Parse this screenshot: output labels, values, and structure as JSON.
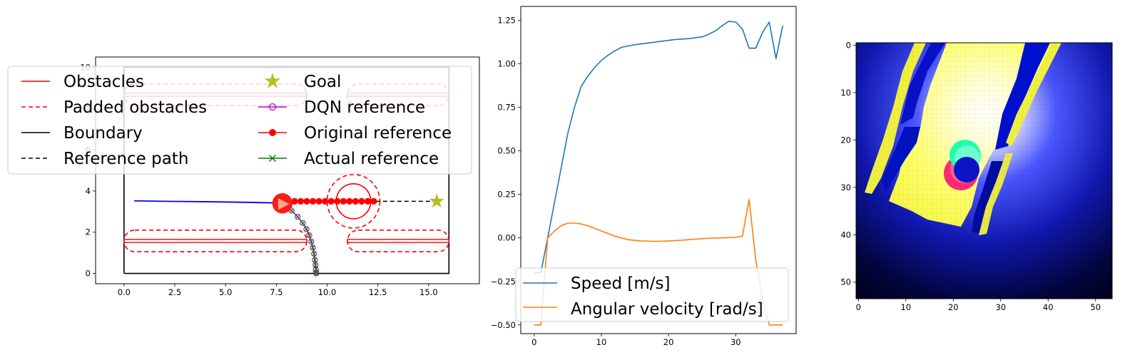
{
  "colors": {
    "obstacle": "#ff0000",
    "boundary": "#000000",
    "reference_path": "#000000",
    "goal": "#bcbd22",
    "dqn": "#bf00bf",
    "original": "#ff0000",
    "actual": "#008000",
    "trajectory": "#0000ff",
    "speed": "#1f77b4",
    "angular": "#ff7f0e"
  },
  "chart_data": [
    {
      "type": "line",
      "xlim": [
        -1.4,
        17.5
      ],
      "ylim": [
        -0.5,
        10.5
      ],
      "xticks": [
        "0.0",
        "2.5",
        "5.0",
        "7.5",
        "10.0",
        "12.5",
        "15.0"
      ],
      "xtick_values": [
        0,
        2.5,
        5,
        7.5,
        10,
        12.5,
        15
      ],
      "yticks": [
        "0",
        "2",
        "4",
        "6",
        "8",
        "10"
      ],
      "ytick_values": [
        0,
        2,
        4,
        6,
        8,
        10
      ],
      "legend": {
        "placement": "upper-left",
        "entries": [
          "Obstacles",
          "Padded obstacles",
          "Boundary",
          "Reference path",
          "Goal",
          "DQN reference",
          "Original reference",
          "Actual reference"
        ]
      },
      "boundary": [
        [
          0,
          0
        ],
        [
          16,
          0
        ],
        [
          16,
          10
        ],
        [
          0,
          10
        ],
        [
          0,
          0
        ]
      ],
      "obstacles": [
        {
          "x": [
            0,
            9
          ],
          "y": [
            1.5,
            1.65
          ]
        },
        {
          "x": [
            11,
            16
          ],
          "y": [
            1.5,
            1.65
          ]
        },
        {
          "x": [
            0,
            9
          ],
          "y": [
            8.6,
            8.75
          ]
        },
        {
          "x": [
            11,
            16
          ],
          "y": [
            8.6,
            8.75
          ]
        }
      ],
      "padded_obstacles": [
        {
          "x": [
            0,
            9
          ],
          "y": [
            1.05,
            2.1
          ]
        },
        {
          "x": [
            11,
            16
          ],
          "y": [
            1.05,
            2.1
          ]
        },
        {
          "x": [
            0,
            9
          ],
          "y": [
            8.15,
            9.2
          ]
        },
        {
          "x": [
            11,
            16
          ],
          "y": [
            8.15,
            9.2
          ]
        }
      ],
      "dynamic_obstacle": {
        "center": [
          11.3,
          3.5
        ],
        "radius": 0.85,
        "padded_radius": 1.3
      },
      "robot": {
        "center": [
          7.8,
          3.4
        ],
        "radius": 0.5
      },
      "goal": [
        15.4,
        3.5
      ],
      "reference_path": {
        "x": [
          12.4,
          15.4
        ],
        "y": [
          3.5,
          3.5
        ]
      },
      "trajectory": {
        "x": [
          0.5,
          2,
          4,
          6,
          7.5,
          7.8
        ],
        "y": [
          3.52,
          3.5,
          3.48,
          3.45,
          3.42,
          3.4
        ]
      },
      "original_reference": {
        "x": [
          7.8,
          8.1,
          8.4,
          8.7,
          9.0,
          9.3,
          9.6,
          9.9,
          10.2,
          10.5,
          10.8,
          11.1,
          11.4,
          11.7,
          12.0,
          12.3
        ],
        "y": [
          3.5,
          3.5,
          3.5,
          3.5,
          3.5,
          3.5,
          3.5,
          3.5,
          3.5,
          3.5,
          3.5,
          3.5,
          3.5,
          3.5,
          3.5,
          3.5
        ]
      },
      "dqn_reference": {
        "x": [
          7.9,
          8.25,
          8.55,
          8.8,
          8.98,
          9.12,
          9.22,
          9.3,
          9.36,
          9.4,
          9.43,
          9.45,
          9.46,
          9.47
        ],
        "y": [
          3.3,
          3.05,
          2.75,
          2.45,
          2.15,
          1.85,
          1.55,
          1.25,
          0.95,
          0.65,
          0.4,
          0.2,
          0.05,
          0.0
        ]
      },
      "actual_reference": {
        "x": [
          7.9,
          8.25,
          8.55,
          8.8,
          8.98,
          9.12,
          9.22,
          9.3,
          9.36,
          9.4,
          9.43,
          9.45,
          9.46,
          9.47
        ],
        "y": [
          3.3,
          3.05,
          2.75,
          2.45,
          2.15,
          1.85,
          1.55,
          1.25,
          0.95,
          0.65,
          0.4,
          0.2,
          0.05,
          0.0
        ]
      }
    },
    {
      "type": "line",
      "xlim": [
        -2,
        39
      ],
      "ylim": [
        -0.55,
        1.33
      ],
      "xticks": [
        "0",
        "10",
        "20",
        "30"
      ],
      "xtick_values": [
        0,
        10,
        20,
        30
      ],
      "yticks": [
        "−0.50",
        "−0.25",
        "0.00",
        "0.25",
        "0.50",
        "0.75",
        "1.00",
        "1.25"
      ],
      "ytick_values": [
        -0.5,
        -0.25,
        0,
        0.25,
        0.5,
        0.75,
        1.0,
        1.25
      ],
      "legend": {
        "placement": "lower-left"
      },
      "series": [
        {
          "name": "Speed [m/s]",
          "x": [
            0,
            1,
            2,
            3,
            4,
            5,
            6,
            7,
            8,
            9,
            10,
            11,
            12,
            13,
            15,
            17,
            19,
            21,
            23,
            25,
            26,
            27,
            28,
            29,
            30,
            31,
            32,
            33,
            34,
            35,
            36,
            37
          ],
          "y": [
            -0.2,
            -0.2,
            0.0,
            0.2,
            0.4,
            0.6,
            0.75,
            0.87,
            0.93,
            0.98,
            1.02,
            1.05,
            1.075,
            1.095,
            1.11,
            1.12,
            1.13,
            1.14,
            1.145,
            1.155,
            1.17,
            1.19,
            1.22,
            1.245,
            1.24,
            1.2,
            1.09,
            1.09,
            1.18,
            1.24,
            1.03,
            1.22
          ]
        },
        {
          "name": "Angular velocity [rad/s]",
          "x": [
            0,
            1,
            2,
            3,
            4,
            5,
            6,
            7,
            8,
            10,
            12,
            14,
            16,
            18,
            20,
            22,
            24,
            26,
            28,
            30,
            31,
            32,
            33,
            34,
            35,
            36,
            37
          ],
          "y": [
            -0.5,
            -0.5,
            0.0,
            0.04,
            0.07,
            0.085,
            0.085,
            0.08,
            0.07,
            0.04,
            0.01,
            -0.01,
            -0.018,
            -0.02,
            -0.018,
            -0.013,
            -0.007,
            -0.002,
            0.0,
            0.003,
            0.01,
            0.22,
            -0.13,
            -0.35,
            -0.5,
            -0.5,
            -0.5
          ]
        }
      ]
    },
    {
      "type": "heatmap",
      "grid_size": [
        54,
        54
      ],
      "xlim": [
        0,
        54
      ],
      "ylim": [
        54,
        0
      ],
      "xticks": [
        "0",
        "10",
        "20",
        "30",
        "40",
        "50"
      ],
      "xtick_values": [
        0,
        10,
        20,
        30,
        40,
        50
      ],
      "yticks": [
        "0",
        "10",
        "20",
        "30",
        "40",
        "50"
      ],
      "ytick_values": [
        0,
        10,
        20,
        30,
        40,
        50
      ]
    }
  ]
}
